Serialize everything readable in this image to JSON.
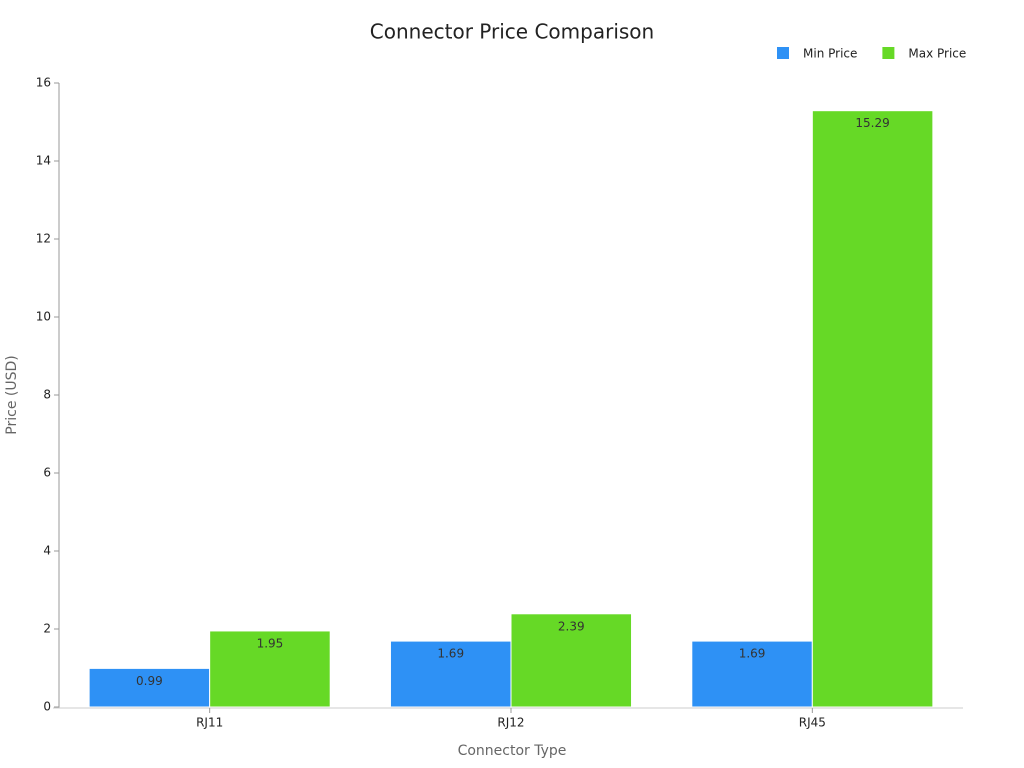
{
  "chart_data": {
    "type": "bar",
    "title": "Connector Price Comparison",
    "x_label": "Connector Type",
    "y_label": "Price (USD)",
    "categories": [
      "RJ11",
      "RJ12",
      "RJ45"
    ],
    "series": [
      {
        "name": "Min Price",
        "color": "#2e91f5",
        "values": [
          0.99,
          1.69,
          1.69
        ]
      },
      {
        "name": "Max Price",
        "color": "#66d926",
        "values": [
          1.95,
          2.39,
          15.29
        ]
      }
    ],
    "ylim": [
      0,
      16
    ],
    "yticks": [
      0,
      2,
      4,
      6,
      8,
      10,
      12,
      14,
      16
    ],
    "legend": "top-right",
    "grid": false
  }
}
